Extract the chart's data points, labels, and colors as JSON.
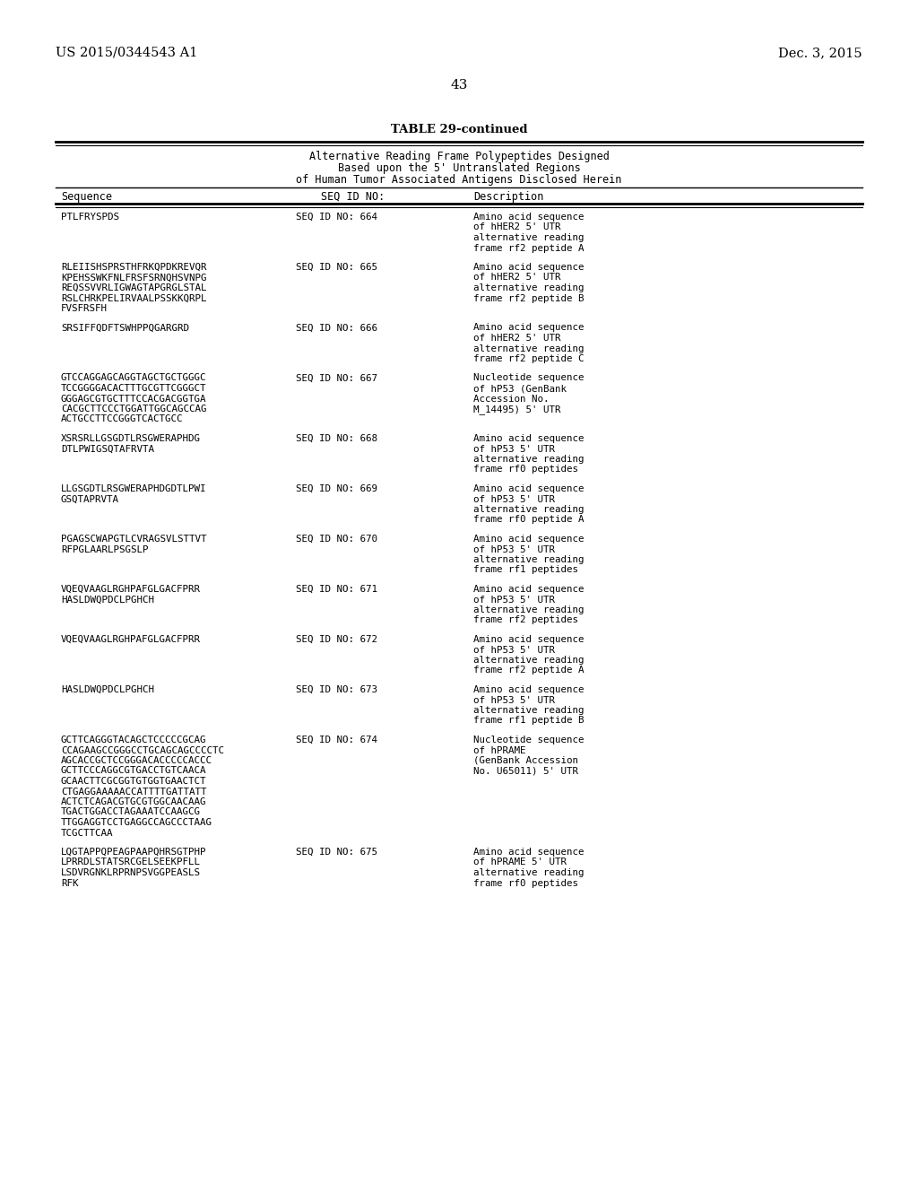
{
  "patent_number": "US 2015/0344543 A1",
  "patent_date": "Dec. 3, 2015",
  "page_number": "43",
  "table_title": "TABLE 29-continued",
  "table_subtitle": [
    "Alternative Reading Frame Polypeptides Designed",
    "Based upon the 5' Untranslated Regions",
    "of Human Tumor Associated Antigens Disclosed Herein"
  ],
  "col_headers": [
    "Sequence",
    "SEQ ID NO:",
    "Description"
  ],
  "rows": [
    {
      "sequence": [
        "PTLFRYSPDS"
      ],
      "seq_id": "SEQ ID NO: 664",
      "description": [
        "Amino acid sequence",
        "of hHER2 5' UTR",
        "alternative reading",
        "frame rf2 peptide A"
      ]
    },
    {
      "sequence": [
        "RLEIISHSPRSTHFRKQPDKREVQR",
        "KPEHSSWKFNLFRSFSRNQHSVNPG",
        "REQSSVVRLIGWAGTAPGRGLSTAL",
        "RSLCHRKPELIRVAALPSSKKQRPL",
        "FVSFRSFH"
      ],
      "seq_id": "SEQ ID NO: 665",
      "description": [
        "Amino acid sequence",
        "of hHER2 5' UTR",
        "alternative reading",
        "frame rf2 peptide B"
      ]
    },
    {
      "sequence": [
        "SRSIFFQDFTSWHPPQGARGRD"
      ],
      "seq_id": "SEQ ID NO: 666",
      "description": [
        "Amino acid sequence",
        "of hHER2 5' UTR",
        "alternative reading",
        "frame rf2 peptide C"
      ]
    },
    {
      "sequence": [
        "GTCCAGGAGCAGGTAGCTGCTGGGC",
        "TCCGGGGACACTTTGCGTTCGGGCT",
        "GGGAGCGTGCTTTCCACGACGGTGA",
        "CACGCTTCCCTGGATTGGCAGCCAG",
        "ACTGCCTTCCGGGTCACTGCC"
      ],
      "seq_id": "SEQ ID NO: 667",
      "description": [
        "Nucleotide sequence",
        "of hP53 (GenBank",
        "Accession No.",
        "M_14495) 5' UTR"
      ]
    },
    {
      "sequence": [
        "XSRSRLLGSGDTLRSGWERAPHDG",
        "DTLPWIGSQTAFRVTA"
      ],
      "seq_id": "SEQ ID NO: 668",
      "description": [
        "Amino acid sequence",
        "of hP53 5' UTR",
        "alternative reading",
        "frame rf0 peptides"
      ]
    },
    {
      "sequence": [
        "LLGSGDTLRSGWERAPHDGDTLPWI",
        "GSQTAPRVTA"
      ],
      "seq_id": "SEQ ID NO: 669",
      "description": [
        "Amino acid sequence",
        "of hP53 5' UTR",
        "alternative reading",
        "frame rf0 peptide A"
      ]
    },
    {
      "sequence": [
        "PGAGSCWAPGTLCVRAGSVLSTTVT",
        "RFPGLAARLPSGSLP"
      ],
      "seq_id": "SEQ ID NO: 670",
      "description": [
        "Amino acid sequence",
        "of hP53 5' UTR",
        "alternative reading",
        "frame rf1 peptides"
      ]
    },
    {
      "sequence": [
        "VQEQVAAGLRGHPAFGLGACFPRR",
        "HASLDWQPDCLPGHCH"
      ],
      "seq_id": "SEQ ID NO: 671",
      "description": [
        "Amino acid sequence",
        "of hP53 5' UTR",
        "alternative reading",
        "frame rf2 peptides"
      ]
    },
    {
      "sequence": [
        "VQEQVAAGLRGHPAFGLGACFPRR"
      ],
      "seq_id": "SEQ ID NO: 672",
      "description": [
        "Amino acid sequence",
        "of hP53 5' UTR",
        "alternative reading",
        "frame rf2 peptide A"
      ]
    },
    {
      "sequence": [
        "HASLDWQPDCLPGHCH"
      ],
      "seq_id": "SEQ ID NO: 673",
      "description": [
        "Amino acid sequence",
        "of hP53 5' UTR",
        "alternative reading",
        "frame rf1 peptide B"
      ]
    },
    {
      "sequence": [
        "GCTTCAGGGTACAGCTCCCCCGCAG",
        "CCAGAAGCCGGGCCTGCAGCAGCCCCTC",
        "AGCACCGCTCCGGGACACCCCCACCC",
        "GCTTCCCAGGCGTGACCTGTCAACA",
        "GCAACTTCGCGGTGTGGTGAACTCT",
        "CTGAGGAAAAACCATTTTGATTATT",
        "ACTCTCAGACGTGCGTGGCAACAAG",
        "TGACTGGACCTAGAAATCCAAGCG",
        "TTGGAGGTCCTGAGGCCAGCCCTAAG",
        "TCGCTTCAA"
      ],
      "seq_id": "SEQ ID NO: 674",
      "description": [
        "Nucleotide sequence",
        "of hPRAME",
        "(GenBank Accession",
        "No. U65011) 5' UTR"
      ]
    },
    {
      "sequence": [
        "LQGTAPPQPEAGPAAPQHRSGTPHP",
        "LPRRDLSTATSRCGELSEEKPFLL",
        "LSDVRGNKLRPRNPSVGGPEASLS",
        "RFK"
      ],
      "seq_id": "SEQ ID NO: 675",
      "description": [
        "Amino acid sequence",
        "of hPRAME 5' UTR",
        "alternative reading",
        "frame rf0 peptides"
      ]
    }
  ]
}
